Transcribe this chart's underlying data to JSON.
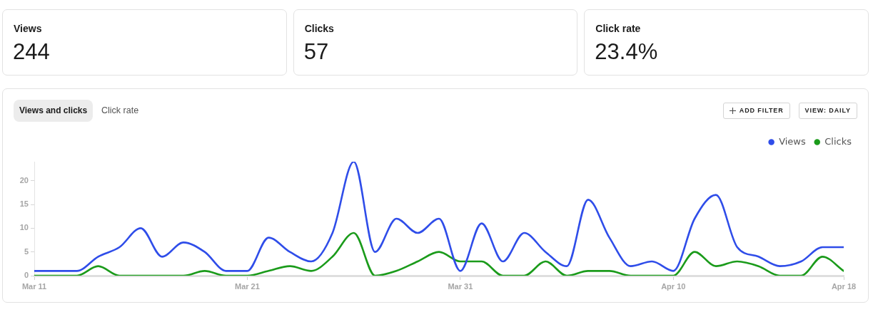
{
  "chart_data": [
    {
      "type": "other",
      "title": "Views",
      "annotations": [
        "244"
      ]
    },
    {
      "type": "other",
      "title": "Clicks",
      "annotations": [
        "57"
      ]
    },
    {
      "type": "other",
      "title": "Click rate",
      "annotations": [
        "23.4%"
      ]
    },
    {
      "type": "line",
      "x": [
        "--03-11",
        "--03-12",
        "--03-13",
        "--03-14",
        "--03-15",
        "--03-16",
        "--03-17",
        "--03-18",
        "--03-19",
        "--03-20",
        "--03-21",
        "--03-22",
        "--03-23",
        "--03-24",
        "--03-25",
        "--03-26",
        "--03-27",
        "--03-28",
        "--03-29",
        "--03-30",
        "--03-31",
        "--04-01",
        "--04-02",
        "--04-03",
        "--04-04",
        "--04-05",
        "--04-06",
        "--04-07",
        "--04-08",
        "--04-09",
        "--04-10",
        "--04-11",
        "--04-12",
        "--04-13",
        "--04-14",
        "--04-15",
        "--04-16",
        "--04-17",
        "--04-18"
      ],
      "series": [
        {
          "name": "Views",
          "color": "#2f4de9",
          "values": [
            1,
            1,
            1,
            4,
            6,
            10,
            4,
            7,
            5,
            1,
            1,
            8,
            5,
            3,
            9,
            24,
            5,
            12,
            9,
            12,
            1,
            11,
            3,
            9,
            5,
            2,
            16,
            8,
            2,
            3,
            1,
            12,
            17,
            6,
            4,
            2,
            3,
            6,
            6
          ]
        },
        {
          "name": "Clicks",
          "color": "#1b9b1b",
          "values": [
            0,
            0,
            0,
            2,
            0,
            0,
            0,
            0,
            1,
            0,
            0,
            1,
            2,
            1,
            4,
            9,
            0,
            1,
            3,
            5,
            3,
            3,
            0,
            0,
            3,
            0,
            1,
            1,
            0,
            0,
            0,
            5,
            2,
            3,
            2,
            0,
            0,
            4,
            1
          ]
        }
      ],
      "xlim": [
        "--03-11",
        "--04-18"
      ],
      "xticks": [
        {
          "value": "--03-11",
          "label": "Mar 11"
        },
        {
          "value": "--03-21",
          "label": "Mar 21"
        },
        {
          "value": "--03-31",
          "label": "Mar 31"
        },
        {
          "value": "--04-10",
          "label": "Apr 10"
        },
        {
          "value": "--04-18",
          "label": "Apr 18"
        }
      ],
      "ylim": [
        0,
        24
      ],
      "yticks": [
        0,
        5,
        10,
        15,
        20
      ],
      "grid": false,
      "legend": "top right",
      "marker": "none",
      "annotations": [
        "Views and clicks",
        "Click rate",
        "ADD FILTER",
        "VIEW: DAILY"
      ]
    }
  ]
}
